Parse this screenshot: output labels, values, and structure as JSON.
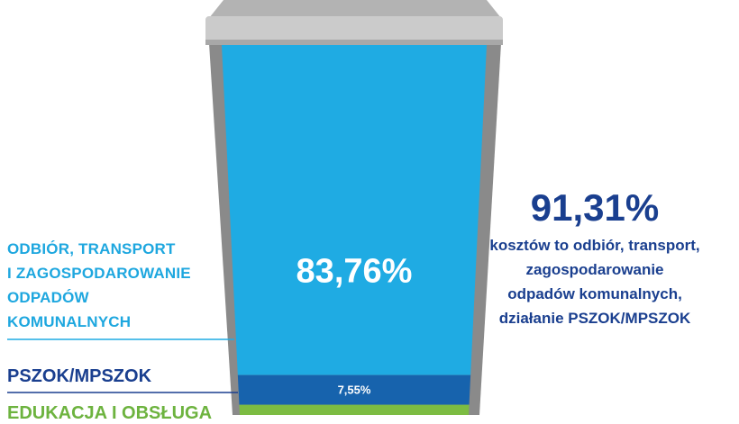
{
  "chart_data": {
    "type": "bar",
    "title": "",
    "categories": [
      "ODBIÓR, TRANSPORT I ZAGOSPODAROWANIE ODPADÓW KOMUNALNYCH",
      "PSZOK/MPSZOK",
      "EDUKACJA I OBSŁUGA"
    ],
    "values": [
      83.76,
      7.55,
      null
    ],
    "value_labels": [
      "83,76%",
      "7,55%",
      ""
    ],
    "stacked": true,
    "colors": [
      "#1fabe3",
      "#1763ad",
      "#7cbc42"
    ]
  },
  "labels": {
    "collection_lines": [
      "ODBIÓR, TRANSPORT",
      "I ZAGOSPODAROWANIE",
      "ODPADÓW",
      "KOMUNALNYCH"
    ],
    "pszok": "PSZOK/MPSZOK",
    "education": "EDUKACJA I OBSŁUGA"
  },
  "summary": {
    "value": "91,31%",
    "text_lines": [
      "kosztów to odbiór, transport,",
      "zagospodarowanie",
      "odpadów komunalnych,",
      "działanie PSZOK/MPSZOK"
    ]
  },
  "colors": {
    "lid": "#c9c9c9",
    "lid_edge": "#9a9a9a",
    "bin_back": "#8a8a8a",
    "leader_line": "#1fabe3",
    "dark_blue": "#1a3f8f"
  }
}
